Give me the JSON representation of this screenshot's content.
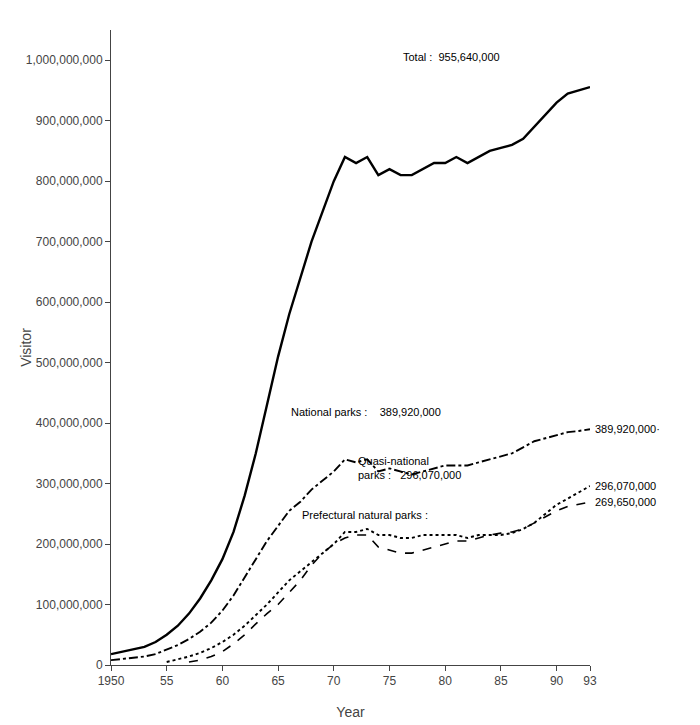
{
  "chart_data": {
    "type": "line",
    "xlabel": "Year",
    "ylabel": "Visitor",
    "xlim": [
      1950,
      1993
    ],
    "ylim": [
      0,
      1050000000
    ],
    "xticks": [
      1950,
      {
        "value": 1955,
        "label": "55"
      },
      {
        "value": 1960,
        "label": "60"
      },
      {
        "value": 1965,
        "label": "65"
      },
      {
        "value": 1970,
        "label": "70"
      },
      {
        "value": 1975,
        "label": "75"
      },
      {
        "value": 1980,
        "label": "80"
      },
      {
        "value": 1985,
        "label": "85"
      },
      {
        "value": 1990,
        "label": "90"
      },
      {
        "value": 1993,
        "label": "93"
      }
    ],
    "yticks": [
      0,
      {
        "value": 100000000,
        "label": "100,000,000"
      },
      {
        "value": 200000000,
        "label": "200,000,000"
      },
      {
        "value": 300000000,
        "label": "300,000,000"
      },
      {
        "value": 400000000,
        "label": "400,000,000"
      },
      {
        "value": 500000000,
        "label": "500,000,000"
      },
      {
        "value": 600000000,
        "label": "600,000,000"
      },
      {
        "value": 700000000,
        "label": "700,000,000"
      },
      {
        "value": 800000000,
        "label": "800,000,000"
      },
      {
        "value": 900000000,
        "label": "900,000,000"
      },
      {
        "value": 1000000000,
        "label": "1,000,000,000"
      }
    ],
    "grid": false,
    "x": [
      1950,
      1951,
      1952,
      1953,
      1954,
      1955,
      1956,
      1957,
      1958,
      1959,
      1960,
      1961,
      1962,
      1963,
      1964,
      1965,
      1966,
      1967,
      1968,
      1969,
      1970,
      1971,
      1972,
      1973,
      1974,
      1975,
      1976,
      1977,
      1978,
      1979,
      1980,
      1981,
      1982,
      1983,
      1984,
      1985,
      1986,
      1987,
      1988,
      1989,
      1990,
      1991,
      1992,
      1993
    ],
    "series": [
      {
        "color": "#000000",
        "line_style": "solid",
        "values": [
          18000000,
          22000000,
          26000000,
          30000000,
          38000000,
          50000000,
          65000000,
          85000000,
          110000000,
          140000000,
          175000000,
          220000000,
          280000000,
          350000000,
          430000000,
          510000000,
          580000000,
          640000000,
          700000000,
          750000000,
          800000000,
          840000000,
          830000000,
          840000000,
          810000000,
          820000000,
          810000000,
          810000000,
          820000000,
          830000000,
          830000000,
          840000000,
          830000000,
          840000000,
          850000000,
          855000000,
          860000000,
          870000000,
          890000000,
          910000000,
          930000000,
          945000000,
          950000000,
          955640000
        ]
      },
      {
        "color": "#000000",
        "line_style": "dashdot",
        "values": [
          8000000,
          10000000,
          12000000,
          14000000,
          18000000,
          25000000,
          33000000,
          43000000,
          55000000,
          70000000,
          90000000,
          115000000,
          145000000,
          175000000,
          205000000,
          230000000,
          255000000,
          270000000,
          290000000,
          305000000,
          320000000,
          340000000,
          335000000,
          340000000,
          320000000,
          325000000,
          320000000,
          315000000,
          320000000,
          325000000,
          330000000,
          330000000,
          330000000,
          335000000,
          340000000,
          345000000,
          350000000,
          360000000,
          370000000,
          375000000,
          380000000,
          385000000,
          387000000,
          389920000
        ]
      },
      {
        "color": "#000000",
        "line_style": "dotted",
        "values": [
          null,
          null,
          null,
          null,
          null,
          5000000,
          9000000,
          14000000,
          20000000,
          28000000,
          38000000,
          50000000,
          65000000,
          82000000,
          100000000,
          120000000,
          140000000,
          155000000,
          170000000,
          185000000,
          200000000,
          220000000,
          220000000,
          225000000,
          215000000,
          215000000,
          210000000,
          210000000,
          215000000,
          215000000,
          215000000,
          215000000,
          210000000,
          215000000,
          215000000,
          215000000,
          218000000,
          225000000,
          235000000,
          250000000,
          265000000,
          275000000,
          285000000,
          296070000
        ]
      },
      {
        "color": "#000000",
        "line_style": "dashed",
        "values": [
          null,
          null,
          null,
          null,
          null,
          null,
          null,
          5000000,
          8000000,
          14000000,
          22000000,
          35000000,
          50000000,
          68000000,
          85000000,
          100000000,
          120000000,
          140000000,
          165000000,
          185000000,
          200000000,
          210000000,
          215000000,
          215000000,
          195000000,
          190000000,
          185000000,
          185000000,
          190000000,
          195000000,
          200000000,
          205000000,
          205000000,
          210000000,
          215000000,
          218000000,
          220000000,
          225000000,
          235000000,
          245000000,
          255000000,
          262000000,
          266000000,
          269650000
        ]
      }
    ],
    "annotations": [
      {
        "text": "Total :  955,640,000",
        "x": 1976,
        "y": 1005000000
      },
      {
        "text": "National parks :    389,920,000",
        "x": 1966,
        "y": 418000000
      },
      {
        "text": "Quasi-national\nparks :   296,070,000",
        "x": 1972,
        "y": 325000000
      },
      {
        "text": "Prefectural natural parks :",
        "x": 1967,
        "y": 248000000
      },
      {
        "text": "389,920,000·",
        "x": 1993.3,
        "y": 389920000
      },
      {
        "text": "296,070,000",
        "x": 1993.3,
        "y": 296070000
      },
      {
        "text": "269,650,000",
        "x": 1993.3,
        "y": 269650000
      }
    ]
  }
}
